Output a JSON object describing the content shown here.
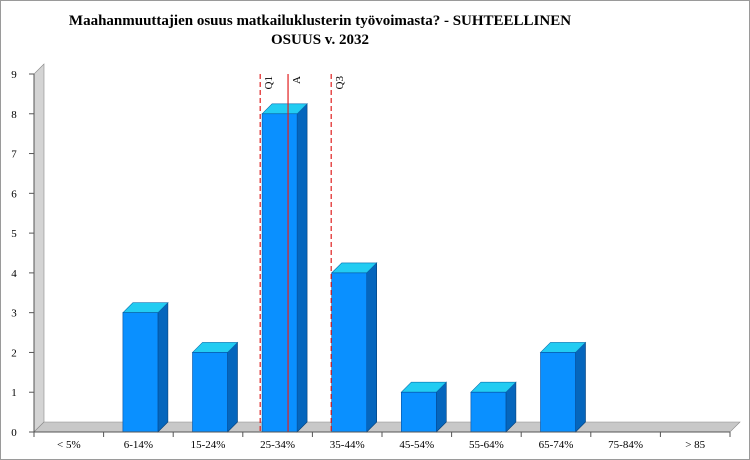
{
  "chart_data": {
    "type": "bar",
    "title_line1": "Maahanmuuttajien osuus matkailuklusterin työvoimasta?  - SUHTEELLINEN",
    "title_line2": "OSUUS v. 2032",
    "xlabel": "",
    "ylabel": "",
    "categories": [
      "< 5%",
      "6-14%",
      "15-24%",
      "25-34%",
      "35-44%",
      "45-54%",
      "55-64%",
      "65-74%",
      "75-84%",
      "> 85"
    ],
    "values": [
      0,
      3,
      2,
      8,
      4,
      1,
      1,
      2,
      0,
      0
    ],
    "ylim": [
      0,
      9
    ],
    "yticks": [
      0,
      1,
      2,
      3,
      4,
      5,
      6,
      7,
      8,
      9
    ],
    "markers": [
      {
        "label": "Q1",
        "x_category_position": 3.25,
        "style": "dashed"
      },
      {
        "label": "A",
        "x_category_position": 3.65,
        "style": "solid"
      },
      {
        "label": "Q3",
        "x_category_position": 4.27,
        "style": "dashed"
      }
    ],
    "grid": false,
    "legend": "none",
    "colors": {
      "bar_front": "#0a90ff",
      "bar_top": "#22ccf2",
      "bar_side": "#0566bd",
      "marker": "#e02020",
      "wall": "#d4d4d4",
      "floor": "#c8c8c8"
    }
  }
}
